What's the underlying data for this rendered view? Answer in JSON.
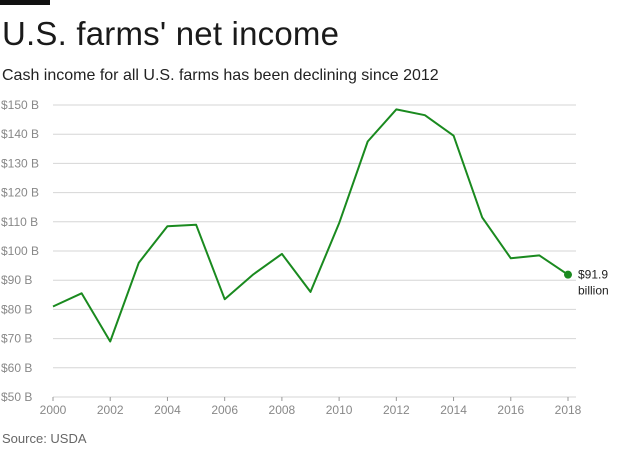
{
  "header": {
    "title": "U.S. farms' net income",
    "subtitle": "Cash income for all U.S. farms has been declining since 2012"
  },
  "footer": {
    "source": "Source: USDA"
  },
  "colors": {
    "line": "#1a8a1f",
    "grid": "#d6d6d6",
    "tick_text": "#888888",
    "top_bar": "#111111"
  },
  "chart_data": {
    "type": "line",
    "title": "U.S. farms' net income",
    "subtitle": "Cash income for all U.S. farms has been declining since 2012",
    "xlabel": "",
    "ylabel": "",
    "x": [
      2000,
      2001,
      2002,
      2003,
      2004,
      2005,
      2006,
      2007,
      2008,
      2009,
      2010,
      2011,
      2012,
      2013,
      2014,
      2015,
      2016,
      2017,
      2018
    ],
    "series": [
      {
        "values": [
          81,
          85.5,
          69,
          96,
          108.5,
          109,
          83.5,
          92,
          99,
          86,
          109.5,
          137.5,
          148.5,
          146.5,
          139.5,
          111.5,
          97.5,
          98.5,
          91.9
        ]
      }
    ],
    "xlim": [
      2000,
      2018
    ],
    "ylim": [
      50,
      150
    ],
    "x_ticks": [
      2000,
      2002,
      2004,
      2006,
      2008,
      2010,
      2012,
      2014,
      2016,
      2018
    ],
    "x_tick_labels": [
      "2000",
      "2002",
      "2004",
      "2006",
      "2008",
      "2010",
      "2012",
      "2014",
      "2016",
      "2018"
    ],
    "y_ticks": [
      50,
      60,
      70,
      80,
      90,
      100,
      110,
      120,
      130,
      140,
      150
    ],
    "y_tick_labels": [
      "$50 B",
      "$60 B",
      "$70 B",
      "$80 B",
      "$90 B",
      "$100 B",
      "$110 B",
      "$120 B",
      "$130 B",
      "$140 B",
      "$150 B"
    ],
    "grid": true,
    "annotation": {
      "x": 2018,
      "y": 91.9,
      "lines": [
        "$91.9",
        "billion"
      ]
    }
  }
}
